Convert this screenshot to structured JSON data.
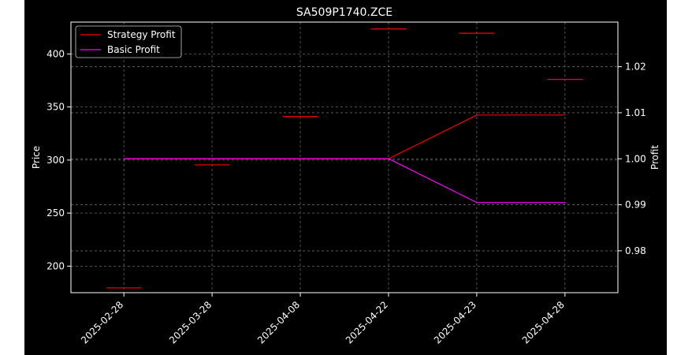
{
  "chart_data": {
    "type": "line",
    "title": "SA509P1740.ZCE",
    "xlabel": "",
    "ylabel_left": "Price",
    "ylabel_right": "Profit",
    "categories": [
      "2025-02-28",
      "2025-03-28",
      "2025-04-08",
      "2025-04-22",
      "2025-04-23",
      "2025-04-28"
    ],
    "price_markers": {
      "axis": "left",
      "values": [
        179.5,
        295.5,
        341.0,
        423.5,
        419.5,
        376.0
      ]
    },
    "series": [
      {
        "name": "Strategy Profit",
        "axis": "right",
        "color": "#ff0000",
        "values": [
          1.0,
          1.0,
          1.0,
          1.0,
          1.0095,
          1.0095
        ]
      },
      {
        "name": "Basic Profit",
        "axis": "right",
        "color": "#ff00ff",
        "values": [
          1.0,
          1.0,
          1.0,
          1.0,
          0.9905,
          0.9905
        ]
      }
    ],
    "ylim_left": [
      175,
      430
    ],
    "yticks_left": [
      200,
      250,
      300,
      350,
      400
    ],
    "ylim_right": [
      0.9709,
      1.0297
    ],
    "yticks_right": [
      0.98,
      0.99,
      1.0,
      1.01,
      1.02
    ],
    "ytick_labels_right": [
      "0.98",
      "0.99",
      "1.00",
      "1.01",
      "1.02"
    ],
    "grid": true,
    "legend_position": "top-left",
    "colors": {
      "background": "#000000",
      "foreground": "#ffffff",
      "grid": "#808080",
      "marker": "#ff0000"
    }
  }
}
